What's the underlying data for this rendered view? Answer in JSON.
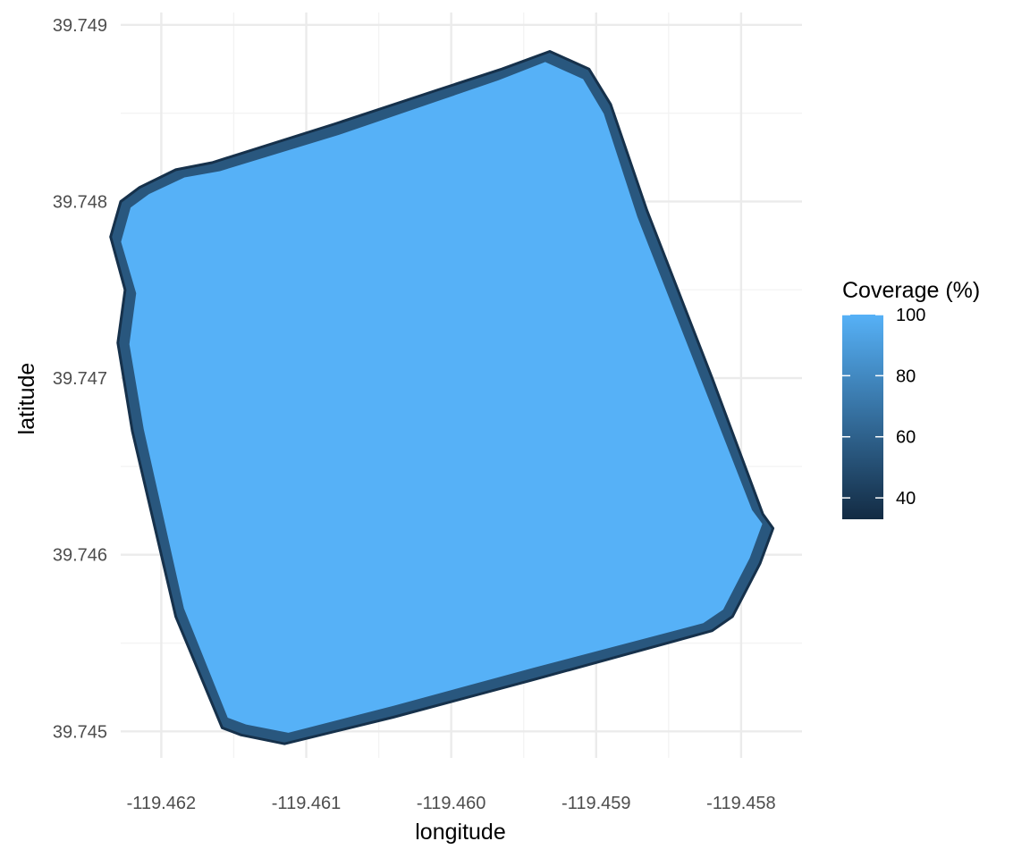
{
  "chart_data": {
    "type": "heatmap",
    "title": "",
    "xlabel": "longitude",
    "ylabel": "latitude",
    "xlim": [
      -119.46228,
      -119.45758
    ],
    "ylim": [
      39.74485,
      39.74907
    ],
    "x_ticks": [
      -119.462,
      -119.461,
      -119.46,
      -119.459,
      -119.458
    ],
    "x_tick_labels": [
      "-119.462",
      "-119.461",
      "-119.460",
      "-119.459",
      "-119.458"
    ],
    "y_ticks": [
      39.745,
      39.746,
      39.747,
      39.748,
      39.749
    ],
    "y_tick_labels": [
      "39.745",
      "39.746",
      "39.747",
      "39.748",
      "39.749"
    ],
    "grid": true,
    "legend": {
      "title": "Coverage (%)",
      "placement": "right",
      "breaks": [
        40,
        60,
        80,
        100
      ],
      "break_labels": [
        "40",
        "60",
        "80",
        "100"
      ],
      "range": [
        33,
        100
      ],
      "colors": {
        "low": "#132b43",
        "high": "#56b1f7"
      }
    },
    "field_outline": {
      "description_units": "longitude/latitude vertices",
      "outer_boundary": [
        [
          -119.4619,
          39.74818
        ],
        [
          -119.46165,
          39.74822
        ],
        [
          -119.4608,
          39.74844
        ],
        [
          -119.4601,
          39.74863
        ],
        [
          -119.45965,
          39.74875
        ],
        [
          -119.45932,
          39.74885
        ],
        [
          -119.45905,
          39.74875
        ],
        [
          -119.4589,
          39.74855
        ],
        [
          -119.45865,
          39.74795
        ],
        [
          -119.4582,
          39.747
        ],
        [
          -119.45785,
          39.74623
        ],
        [
          -119.45778,
          39.74615
        ],
        [
          -119.45787,
          39.74595
        ],
        [
          -119.45806,
          39.74565
        ],
        [
          -119.4582,
          39.74557
        ],
        [
          -119.4594,
          39.7453
        ],
        [
          -119.4604,
          39.74508
        ],
        [
          -119.46115,
          39.74493
        ],
        [
          -119.46145,
          39.74498
        ],
        [
          -119.46158,
          39.74502
        ],
        [
          -119.4619,
          39.74565
        ],
        [
          -119.4622,
          39.7467
        ],
        [
          -119.4623,
          39.7472
        ],
        [
          -119.46225,
          39.7475
        ],
        [
          -119.46235,
          39.7478
        ],
        [
          -119.46228,
          39.748
        ],
        [
          -119.46215,
          39.74808
        ]
      ],
      "edge_coverage": 55,
      "inner_coverage": 100
    }
  }
}
